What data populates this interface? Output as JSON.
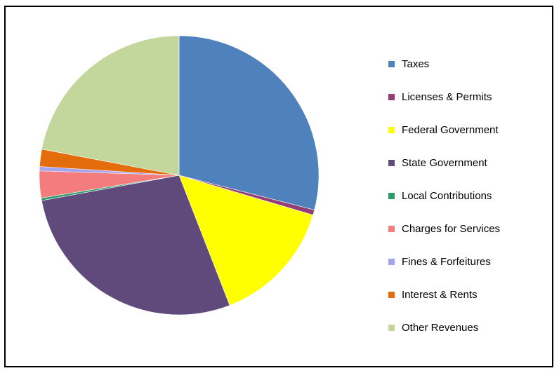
{
  "title": "",
  "chart_data": {
    "type": "pie",
    "title": "",
    "legend_position": "right",
    "slices": [
      {
        "label": "Taxes",
        "value": 29.0,
        "color": "#4F81BD"
      },
      {
        "label": "Licenses & Permits",
        "value": 0.6,
        "color": "#943D74"
      },
      {
        "label": "Federal Government",
        "value": 14.5,
        "color": "#FFFF00"
      },
      {
        "label": "State Government",
        "value": 28.0,
        "color": "#604A7B"
      },
      {
        "label": "Local Contributions",
        "value": 0.3,
        "color": "#2E9B6B"
      },
      {
        "label": "Charges for Services",
        "value": 3.1,
        "color": "#F47C7C"
      },
      {
        "label": "Fines & Forfeitures",
        "value": 0.5,
        "color": "#A3A3F0"
      },
      {
        "label": "Interest & Rents",
        "value": 2.0,
        "color": "#E46C0A"
      },
      {
        "label": "Other Revenues",
        "value": 22.0,
        "color": "#C3D69B"
      }
    ]
  }
}
